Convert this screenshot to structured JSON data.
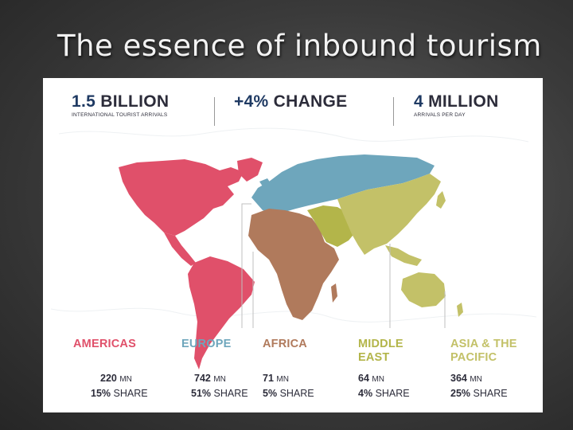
{
  "slide_title": "The essence of inbound tourism",
  "header": {
    "stat1": {
      "number": "1.5",
      "unit": "BILLION",
      "caption": "INTERNATIONAL TOURIST ARRIVALS"
    },
    "stat2": {
      "number": "+4%",
      "unit": "CHANGE"
    },
    "stat3": {
      "number": "4",
      "unit": "MILLION",
      "caption": "ARRIVALS PER DAY"
    }
  },
  "colors": {
    "americas": "#e0506a",
    "europe": "#6ea6bc",
    "africa": "#b07a5c",
    "middle_east": "#b3b54a",
    "asia_pacific": "#c3c168",
    "number_blue": "#1f3a63",
    "dark_text": "#2c2c3a"
  },
  "regions": [
    {
      "key": "americas",
      "name": "AMERICAS",
      "arrivals": "220",
      "arrivals_unit": "MN",
      "share": "15%",
      "share_unit": "SHARE"
    },
    {
      "key": "europe",
      "name": "EUROPE",
      "arrivals": "742",
      "arrivals_unit": "MN",
      "share": "51%",
      "share_unit": "SHARE"
    },
    {
      "key": "africa",
      "name": "AFRICA",
      "arrivals": "71",
      "arrivals_unit": "MN",
      "share": "5%",
      "share_unit": "SHARE"
    },
    {
      "key": "middle_east",
      "name": "MIDDLE\nEAST",
      "arrivals": "64",
      "arrivals_unit": "MN",
      "share": "4%",
      "share_unit": "SHARE"
    },
    {
      "key": "asia_pacific",
      "name": "ASIA & THE\nPACIFIC",
      "arrivals": "364",
      "arrivals_unit": "MN",
      "share": "25%",
      "share_unit": "SHARE"
    }
  ]
}
